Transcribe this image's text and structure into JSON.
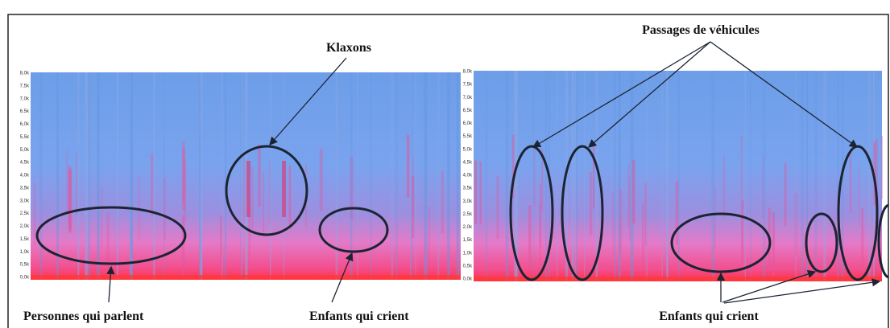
{
  "figure": {
    "left": {
      "axis_labels": [
        "8,0k",
        "7,5k",
        "7,0k",
        "6,5k",
        "6,0k",
        "5,5k",
        "5,0k",
        "4,5k",
        "4,0k",
        "3,5k",
        "3,0k",
        "2,5k",
        "2,0k",
        "1,5k",
        "1,0k",
        "0,5k",
        "0,0k"
      ],
      "annotations": [
        "Klaxons",
        "Personnes qui parlent",
        "Enfants qui crient"
      ]
    },
    "right": {
      "axis_labels": [
        "8,0k",
        "7,5k",
        "7,0k",
        "6,5k",
        "6,0k",
        "5,5k",
        "5,0k",
        "4,5k",
        "4,0k",
        "3,5k",
        "3,0k",
        "2,5k",
        "2,0k",
        "1,5k",
        "1,0k",
        "0,5k",
        "0,0k"
      ],
      "annotations": [
        "Passages de véhicules",
        "Enfants qui crient"
      ]
    }
  }
}
